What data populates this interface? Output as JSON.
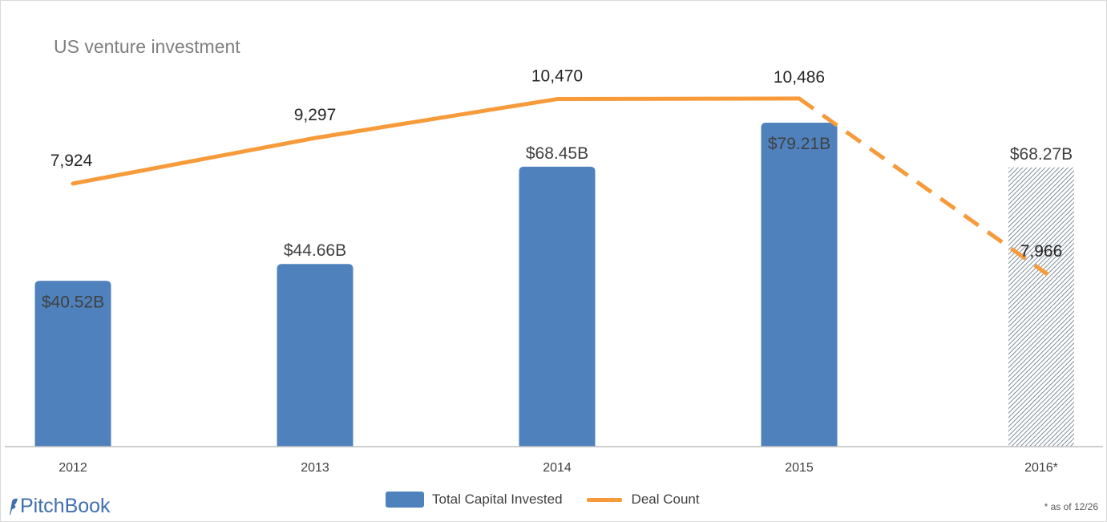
{
  "chart_data": {
    "type": "bar",
    "title": "US venture investment",
    "categories": [
      "2012",
      "2013",
      "2014",
      "2015",
      "2016*"
    ],
    "series": [
      {
        "name": "Total Capital Invested",
        "kind": "bar",
        "values": [
          40.52,
          44.66,
          68.45,
          79.21,
          68.27
        ],
        "labels": [
          "$40.52B",
          "$44.66B",
          "$68.45B",
          "$79.21B",
          "$68.27B"
        ],
        "unit": "$B",
        "color": "#4f81bd"
      },
      {
        "name": "Deal Count",
        "kind": "line",
        "values": [
          7924,
          9297,
          10470,
          10486,
          7966
        ],
        "labels": [
          "7,924",
          "9,297",
          "10,470",
          "10,486",
          "7,966"
        ],
        "color": "#f79a3a",
        "dashed_from_index": 3
      }
    ],
    "ylim_bar": [
      0,
      88
    ],
    "ylim_line": [
      0,
      11000
    ],
    "hatched_category": "2016*",
    "grid": false,
    "legend_placement": "bottom"
  },
  "legend": {
    "bar_label": "Total Capital Invested",
    "line_label": "Deal Count"
  },
  "brand": {
    "name": "PitchBook"
  },
  "footnote": "* as of 12/26"
}
